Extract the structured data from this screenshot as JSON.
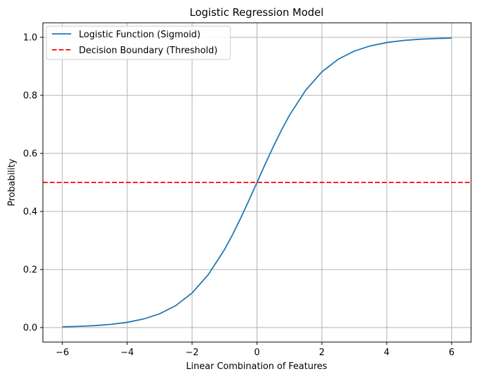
{
  "chart_data": {
    "type": "line",
    "title": "Logistic Regression Model",
    "xlabel": "Linear Combination of Features",
    "ylabel": "Probability",
    "xlim": [
      -6.6,
      6.6
    ],
    "ylim": [
      -0.05,
      1.05
    ],
    "xticks": [
      -6,
      -4,
      -2,
      0,
      2,
      4,
      6
    ],
    "xtick_labels": [
      "−6",
      "−4",
      "−2",
      "0",
      "2",
      "4",
      "6"
    ],
    "yticks": [
      0.0,
      0.2,
      0.4,
      0.6,
      0.8,
      1.0
    ],
    "ytick_labels": [
      "0.0",
      "0.2",
      "0.4",
      "0.6",
      "0.8",
      "1.0"
    ],
    "grid": true,
    "legend_position": "top-left",
    "series": [
      {
        "name": "Logistic Function (Sigmoid)",
        "style": "solid",
        "color": "#1f77b4",
        "x": [
          -6,
          -5.5,
          -5,
          -4.5,
          -4,
          -3.5,
          -3,
          -2.5,
          -2,
          -1.5,
          -1,
          -0.75,
          -0.5,
          -0.25,
          0,
          0.25,
          0.5,
          0.75,
          1,
          1.5,
          2,
          2.5,
          3,
          3.5,
          4,
          4.5,
          5,
          5.5,
          6
        ],
        "y": [
          0.0025,
          0.0041,
          0.0067,
          0.011,
          0.018,
          0.0293,
          0.0474,
          0.0759,
          0.1192,
          0.1824,
          0.2689,
          0.3208,
          0.3775,
          0.4378,
          0.5,
          0.5622,
          0.6225,
          0.6792,
          0.7311,
          0.8176,
          0.8808,
          0.9241,
          0.9526,
          0.9707,
          0.982,
          0.989,
          0.9933,
          0.9959,
          0.9975
        ]
      },
      {
        "name": "Decision Boundary (Threshold)",
        "style": "dashed",
        "color": "#ff0000",
        "type": "hline",
        "y": 0.5
      }
    ]
  }
}
